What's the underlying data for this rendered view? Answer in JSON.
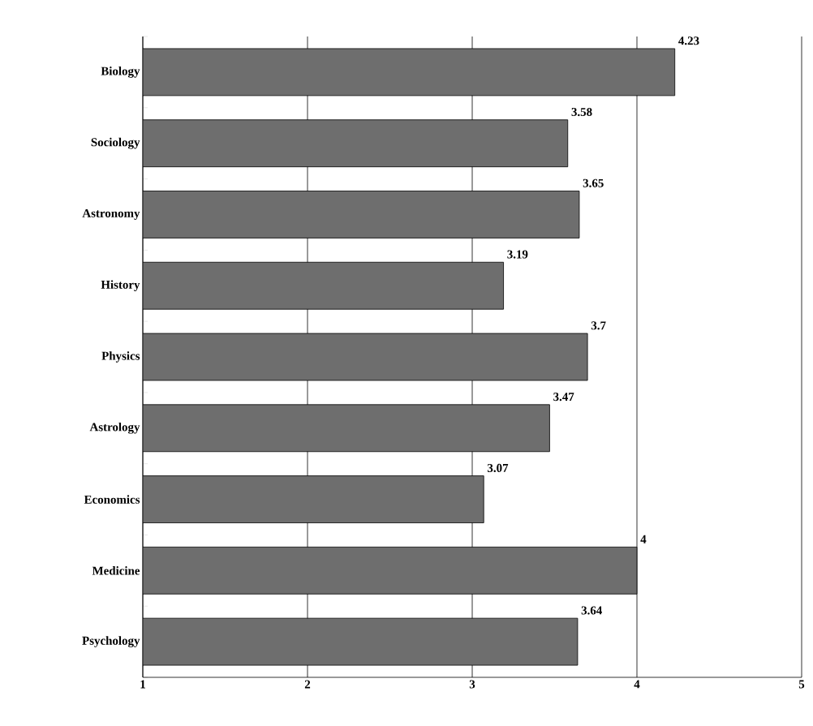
{
  "chart_data": {
    "type": "bar",
    "orientation": "horizontal",
    "categories": [
      "Biology",
      "Sociology",
      "Astronomy",
      "History",
      "Physics",
      "Astrology",
      "Economics",
      "Medicine",
      "Psychology"
    ],
    "values": [
      4.23,
      3.58,
      3.65,
      3.19,
      3.7,
      3.47,
      3.07,
      4,
      3.64
    ],
    "color": "#6e6e6e",
    "xlim": [
      1,
      5
    ],
    "xticks": [
      1,
      2,
      3,
      4,
      5
    ],
    "grid": "x",
    "data_labels": true
  }
}
